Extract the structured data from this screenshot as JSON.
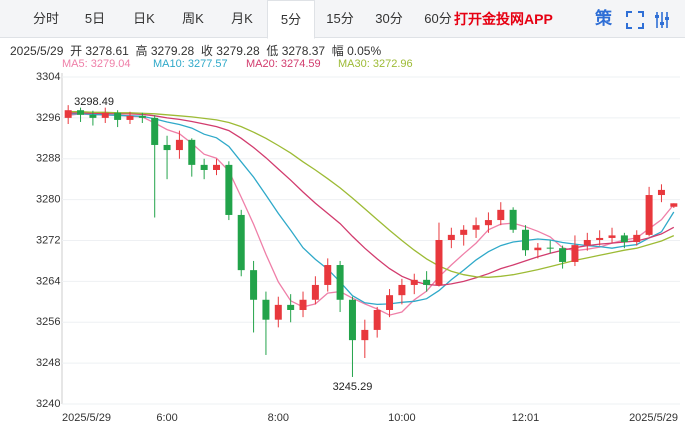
{
  "toolbar": {
    "tabs": [
      "分时",
      "5日",
      "日K",
      "周K",
      "月K",
      "5分",
      "15分",
      "30分",
      "60分"
    ],
    "active_tab": "5分",
    "promo": "打开金投网APP",
    "icon_text": "策"
  },
  "info": {
    "open_label": "开",
    "high_label": "高",
    "close_label": "收",
    "low_label": "低",
    "amp_label": "幅",
    "amp": "0.05%"
  },
  "chart_data": {
    "type": "candlestick",
    "categories": [
      "2025/5/29",
      null,
      null,
      null,
      null,
      null,
      null,
      null,
      "6:00",
      null,
      null,
      null,
      null,
      null,
      null,
      null,
      null,
      "8:00",
      null,
      null,
      null,
      null,
      null,
      null,
      null,
      null,
      null,
      "10:00",
      null,
      null,
      null,
      null,
      null,
      null,
      null,
      null,
      null,
      "12:01",
      null,
      null,
      null,
      null,
      null,
      null,
      null,
      null,
      null,
      null,
      null,
      "2025/5/29"
    ],
    "open": [
      3296.0,
      3297.5,
      3296.6,
      3296.0,
      3297.0,
      3295.6,
      3296.4,
      3296.0,
      3290.7,
      3289.7,
      3291.7,
      3286.8,
      3285.8,
      3286.8,
      3277.0,
      3266.2,
      3260.4,
      3256.5,
      3259.4,
      3258.4,
      3260.4,
      3263.3,
      3267.2,
      3260.4,
      3252.5,
      3254.5,
      3258.4,
      3261.3,
      3263.3,
      3264.3,
      3263.3,
      3272.1,
      3273.1,
      3274.1,
      3275.0,
      3276.0,
      3278.0,
      3274.1,
      3270.1,
      3270.6,
      3270.5,
      3267.8,
      3271.1,
      3272.1,
      3272.5,
      3273.0,
      3271.7,
      3273.1,
      3280.9,
      3278.61
    ],
    "high": [
      3298.49,
      3298.0,
      3297.4,
      3298.0,
      3297.5,
      3297.2,
      3297.0,
      3296.5,
      3292.5,
      3293.5,
      3292.0,
      3288.0,
      3288.0,
      3287.5,
      3278.0,
      3268.0,
      3262.0,
      3261.0,
      3261.5,
      3262.0,
      3265.0,
      3268.5,
      3268.0,
      3261.0,
      3256.5,
      3259.0,
      3262.5,
      3264.5,
      3265.5,
      3266.0,
      3275.5,
      3274.5,
      3275.0,
      3276.5,
      3277.5,
      3279.5,
      3278.5,
      3275.0,
      3271.5,
      3272.0,
      3271.0,
      3273.0,
      3273.5,
      3274.0,
      3274.5,
      3273.5,
      3274.0,
      3282.5,
      3283.0,
      3279.28
    ],
    "low": [
      3294.8,
      3295.2,
      3294.5,
      3295.0,
      3294.2,
      3294.8,
      3295.0,
      3276.5,
      3284.0,
      3288.0,
      3284.5,
      3284.0,
      3284.8,
      3276.0,
      3265.0,
      3254.0,
      3249.6,
      3255.0,
      3256.0,
      3257.0,
      3259.5,
      3262.0,
      3258.0,
      3245.29,
      3249.0,
      3253.0,
      3257.0,
      3259.5,
      3261.5,
      3262.0,
      3263.0,
      3270.5,
      3271.0,
      3272.5,
      3273.5,
      3275.0,
      3273.5,
      3269.0,
      3268.5,
      3269.5,
      3266.5,
      3267.0,
      3270.0,
      3271.0,
      3271.5,
      3270.5,
      3271.0,
      3272.8,
      3279.5,
      3278.37
    ],
    "close": [
      3297.5,
      3296.6,
      3296.0,
      3297.0,
      3295.6,
      3296.4,
      3296.0,
      3290.7,
      3289.7,
      3291.7,
      3286.8,
      3285.8,
      3286.8,
      3277.0,
      3266.2,
      3260.4,
      3256.5,
      3259.4,
      3258.4,
      3260.4,
      3263.3,
      3267.2,
      3260.4,
      3252.5,
      3254.5,
      3258.4,
      3261.3,
      3263.3,
      3264.3,
      3263.3,
      3272.1,
      3273.1,
      3274.1,
      3275.0,
      3276.0,
      3278.0,
      3274.1,
      3270.1,
      3270.6,
      3270.5,
      3267.8,
      3271.1,
      3272.1,
      3272.5,
      3273.0,
      3271.7,
      3273.1,
      3280.9,
      3281.9,
      3279.28
    ],
    "up_color": "#e8383d",
    "down_color": "#22a34a",
    "series": [
      {
        "name": "MA5",
        "label": "MA5: 3279.04",
        "color": "#ef7fa8",
        "values": [
          3296.5,
          3296.8,
          3296.6,
          3296.6,
          3296.5,
          3296.3,
          3296.2,
          3295.0,
          3293.7,
          3292.9,
          3291.0,
          3288.9,
          3288.1,
          3285.6,
          3280.5,
          3275.2,
          3269.3,
          3263.9,
          3260.2,
          3259.0,
          3259.6,
          3261.7,
          3262.0,
          3260.7,
          3259.6,
          3258.6,
          3257.4,
          3258.0,
          3260.4,
          3262.1,
          3264.9,
          3267.2,
          3269.4,
          3271.5,
          3274.1,
          3275.2,
          3275.4,
          3274.7,
          3273.8,
          3272.7,
          3270.6,
          3270.0,
          3270.3,
          3270.7,
          3271.5,
          3272.1,
          3272.5,
          3274.3,
          3276.1,
          3279.04
        ]
      },
      {
        "name": "MA10",
        "label": "MA10: 3277.57",
        "color": "#2fa9c9",
        "values": [
          3296.8,
          3296.8,
          3296.7,
          3296.6,
          3296.5,
          3296.4,
          3296.3,
          3295.8,
          3295.2,
          3294.7,
          3294.0,
          3292.8,
          3292.1,
          3290.4,
          3287.4,
          3284.4,
          3280.9,
          3277.3,
          3274.0,
          3270.6,
          3268.3,
          3266.4,
          3263.9,
          3261.2,
          3259.8,
          3259.5,
          3259.6,
          3259.9,
          3260.1,
          3260.6,
          3262.2,
          3264.3,
          3266.2,
          3268.2,
          3269.8,
          3271.0,
          3271.7,
          3272.0,
          3272.3,
          3272.1,
          3271.6,
          3271.3,
          3271.0,
          3270.8,
          3270.5,
          3270.9,
          3271.2,
          3272.5,
          3273.7,
          3277.57
        ]
      },
      {
        "name": "MA20",
        "label": "MA20: 3274.59",
        "color": "#d23c6e",
        "values": [
          3297.0,
          3297.0,
          3296.9,
          3296.9,
          3296.8,
          3296.8,
          3296.7,
          3296.4,
          3296.0,
          3295.7,
          3295.3,
          3294.8,
          3294.3,
          3293.5,
          3292.0,
          3290.2,
          3288.2,
          3286.0,
          3283.8,
          3281.5,
          3279.3,
          3277.3,
          3275.3,
          3272.8,
          3270.5,
          3268.4,
          3266.5,
          3265.0,
          3264.0,
          3263.4,
          3263.2,
          3263.5,
          3264.0,
          3264.7,
          3265.5,
          3266.5,
          3267.2,
          3268.0,
          3268.8,
          3269.5,
          3270.1,
          3270.6,
          3271.0,
          3271.3,
          3271.5,
          3271.7,
          3271.9,
          3272.5,
          3273.3,
          3274.59
        ]
      },
      {
        "name": "MA30",
        "label": "MA30: 3272.96",
        "color": "#9dbb35",
        "values": [
          3297.2,
          3297.2,
          3297.1,
          3297.1,
          3297.0,
          3297.0,
          3296.9,
          3296.8,
          3296.6,
          3296.4,
          3296.2,
          3295.9,
          3295.6,
          3295.1,
          3294.3,
          3293.2,
          3292.0,
          3290.6,
          3289.1,
          3287.4,
          3285.8,
          3284.1,
          3282.3,
          3280.3,
          3278.2,
          3276.1,
          3274.0,
          3272.0,
          3270.1,
          3268.4,
          3267.0,
          3266.0,
          3265.3,
          3264.9,
          3264.8,
          3265.0,
          3265.3,
          3265.8,
          3266.3,
          3266.9,
          3267.5,
          3268.1,
          3268.6,
          3269.1,
          3269.6,
          3270.1,
          3270.5,
          3271.2,
          3271.9,
          3272.96
        ]
      }
    ],
    "ylim": [
      3240,
      3304
    ],
    "yticks": [
      3240,
      3248,
      3256,
      3264,
      3272,
      3280,
      3288,
      3296,
      3304
    ],
    "grid": true
  }
}
